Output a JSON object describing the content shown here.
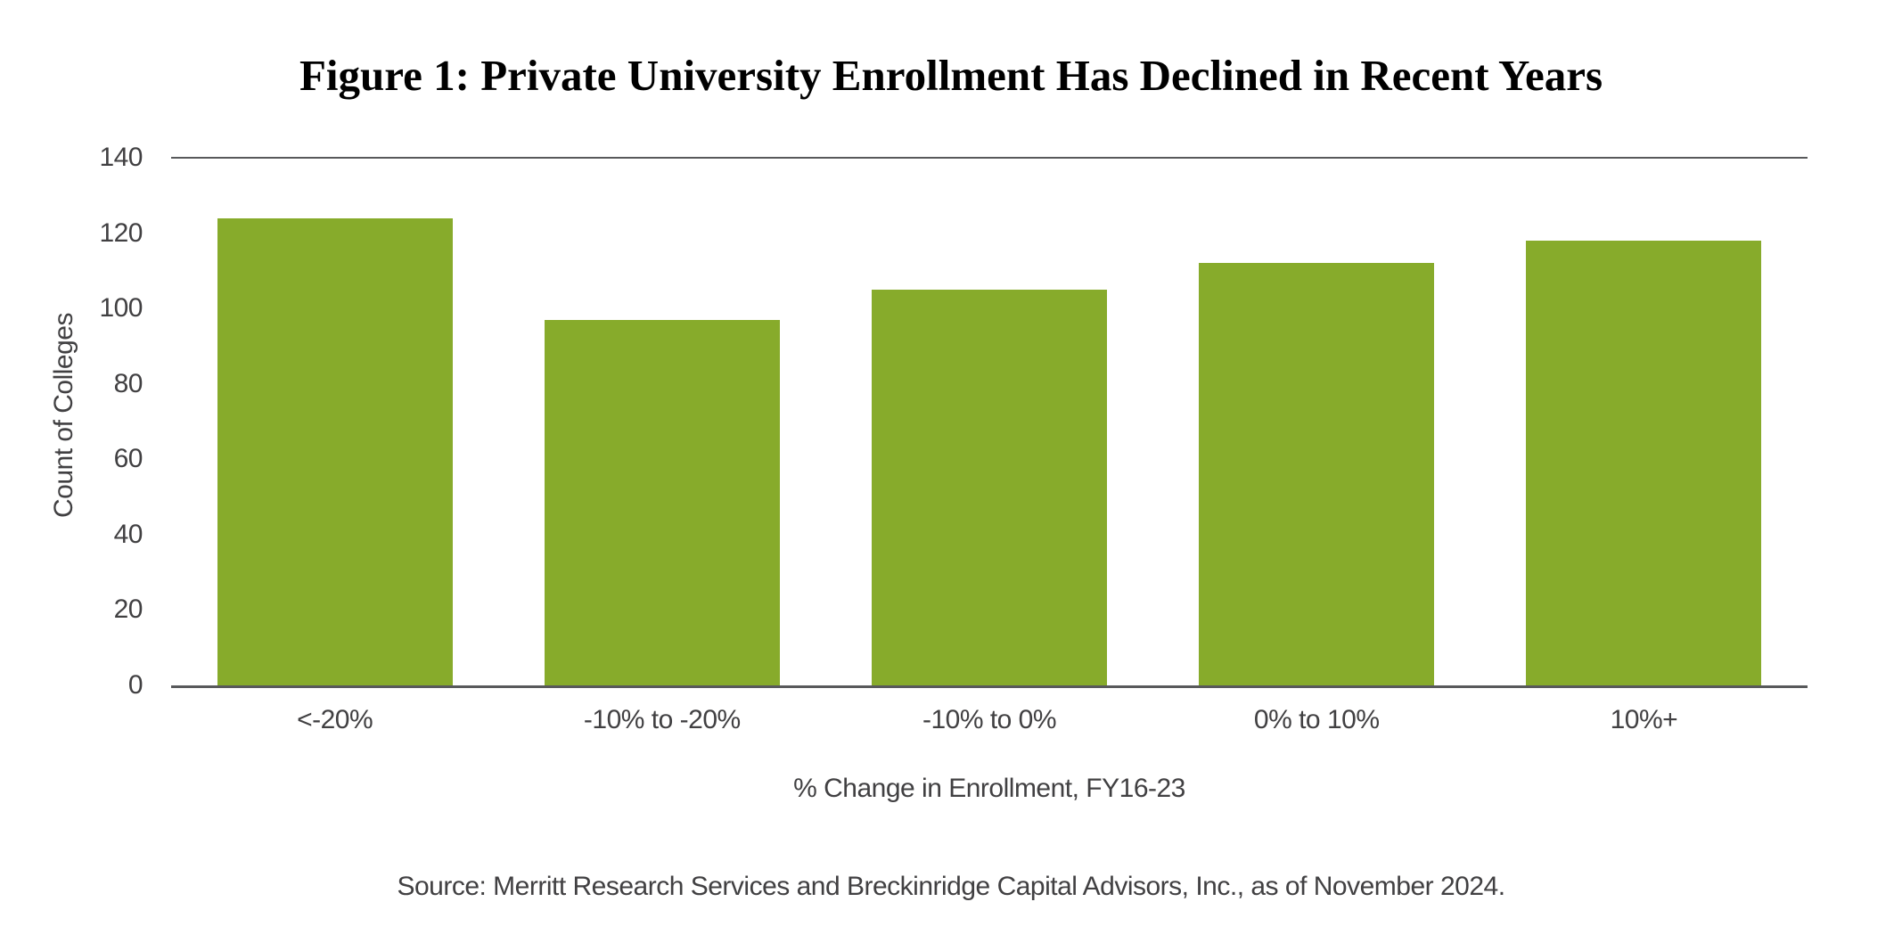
{
  "figure": {
    "title": "Figure 1: Private University Enrollment Has Declined in Recent Years",
    "source": "Source: Merritt Research Services and Breckinridge Capital Advisors, Inc., as of November 2024."
  },
  "chart_data": {
    "type": "bar",
    "title": "Figure 1: Private University Enrollment Has Declined in Recent Years",
    "categories": [
      "<-20%",
      "-10% to -20%",
      "-10% to 0%",
      "0% to 10%",
      "10%+"
    ],
    "values": [
      124,
      97,
      105,
      112,
      118
    ],
    "xlabel": "% Change in Enrollment, FY16-23",
    "ylabel": "Count of Colleges",
    "ylim": [
      0,
      140
    ],
    "yticks": [
      0,
      20,
      40,
      60,
      80,
      100,
      120,
      140
    ],
    "grid": false,
    "legend": false,
    "source": "Source: Merritt Research Services and Breckinridge Capital Advisors, Inc., as of November 2024.",
    "colors": {
      "bar": "#87AB2B",
      "axis_line": "#58595B",
      "tick_text": "#414042",
      "title_text": "#000000",
      "background": "#FFFFFF"
    }
  }
}
